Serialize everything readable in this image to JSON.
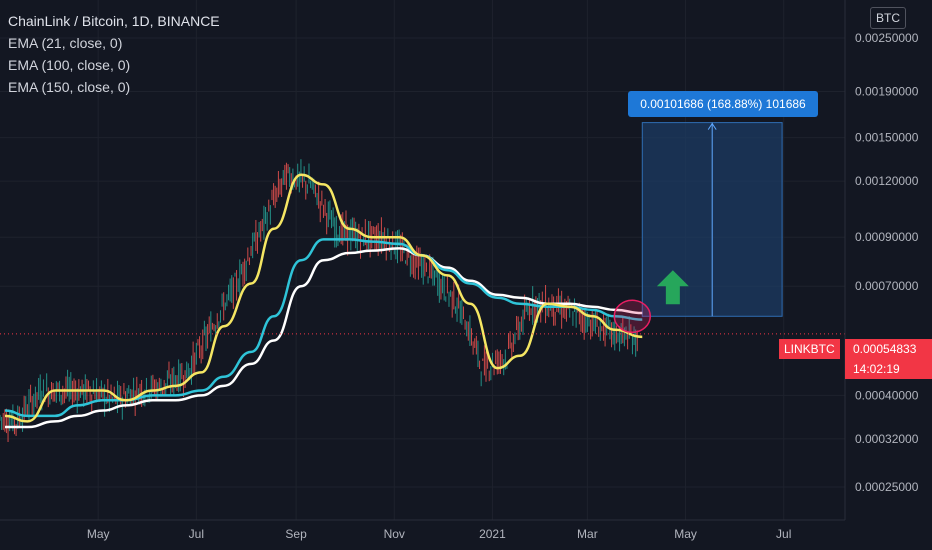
{
  "legend": {
    "title": "ChainLink / Bitcoin, 1D, BINANCE",
    "ema21": "EMA (21, close, 0)",
    "ema100": "EMA (100, close, 0)",
    "ema150": "EMA (150, close, 0)"
  },
  "currency_button": "BTC",
  "measure_label": "0.00101686 (168.88%) 101686",
  "symbol_tag": "LINKBTC",
  "current_price": "0.00054833",
  "countdown": "14:02:19",
  "colors": {
    "background": "#131722",
    "ema21": "#f5e663",
    "ema100": "#2fc4d8",
    "ema150": "#ffffff",
    "candle_up": "#26a69a",
    "candle_down": "#ef5350",
    "measure_fill": "#1c3b63",
    "arrow": "#26a65b",
    "highlight_circle": "#e91e63",
    "price_tag": "#f23645"
  },
  "icons": [
    "up-arrow-icon",
    "highlight-circle"
  ],
  "chart_data": {
    "type": "line",
    "title": "ChainLink / Bitcoin, 1D, BINANCE",
    "y_scale": "log",
    "ylim": [
      0.00022,
      0.0029
    ],
    "y_ticks": [
      "0.00250000",
      "0.00190000",
      "0.00150000",
      "0.00120000",
      "0.00090000",
      "0.00070000",
      "0.00040000",
      "0.00032000",
      "0.00025000"
    ],
    "x_ticks": [
      "May",
      "Jul",
      "Sep",
      "Nov",
      "2021",
      "Mar",
      "May",
      "Jul"
    ],
    "x": [
      "2020-03-01",
      "2020-03-15",
      "2020-04-01",
      "2020-04-15",
      "2020-05-01",
      "2020-05-15",
      "2020-06-01",
      "2020-06-15",
      "2020-07-01",
      "2020-07-15",
      "2020-08-01",
      "2020-08-15",
      "2020-09-01",
      "2020-09-15",
      "2020-10-01",
      "2020-10-15",
      "2020-11-01",
      "2020-11-15",
      "2020-12-01",
      "2020-12-15",
      "2021-01-01",
      "2021-01-15",
      "2021-02-01",
      "2021-02-15",
      "2021-03-01",
      "2021-03-15",
      "2021-04-01"
    ],
    "series": [
      {
        "name": "EMA (21, close, 0)",
        "values": [
          0.00036,
          0.00035,
          0.00041,
          0.00041,
          0.00041,
          0.00039,
          0.00041,
          0.00042,
          0.00045,
          0.00057,
          0.00071,
          0.00094,
          0.00124,
          0.00118,
          0.00094,
          0.0009,
          0.0009,
          0.00082,
          0.00074,
          0.00064,
          0.00046,
          0.00049,
          0.00064,
          0.00063,
          0.0006,
          0.00056,
          0.00054
        ]
      },
      {
        "name": "EMA (100, close, 0)",
        "values": [
          0.00037,
          0.00036,
          0.00036,
          0.00038,
          0.00039,
          0.00039,
          0.0004,
          0.0004,
          0.00041,
          0.00044,
          0.0005,
          0.0006,
          0.0008,
          0.00089,
          0.00089,
          0.00088,
          0.00087,
          0.00082,
          0.00076,
          0.00071,
          0.00066,
          0.00064,
          0.00063,
          0.00063,
          0.00062,
          0.0006,
          0.00059
        ]
      },
      {
        "name": "EMA (150, close, 0)",
        "values": [
          0.00034,
          0.00034,
          0.00035,
          0.00036,
          0.00037,
          0.00038,
          0.00039,
          0.00039,
          0.0004,
          0.00042,
          0.00047,
          0.00053,
          0.0007,
          0.0008,
          0.00083,
          0.00084,
          0.00085,
          0.00082,
          0.00077,
          0.00072,
          0.00067,
          0.00066,
          0.00064,
          0.00064,
          0.00063,
          0.00062,
          0.00061
        ]
      }
    ],
    "last_price": 0.00054833,
    "measure": {
      "from": 0.0006,
      "to": 0.00162,
      "date_from": "2021-04-01",
      "date_to": "2021-06-30",
      "change": "0.00101686 (168.88%)",
      "bars": "101686"
    },
    "grid": true
  }
}
